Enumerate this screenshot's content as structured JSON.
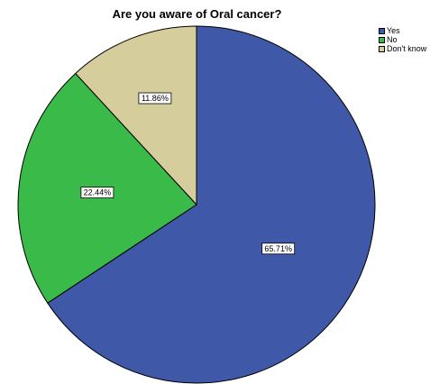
{
  "chart_data": {
    "type": "pie",
    "title": "Are you aware of Oral cancer?",
    "legend_position": "top-right",
    "slices": [
      {
        "label": "Yes",
        "value": 65.71,
        "value_label": "65.71%",
        "color": "#3f58a8"
      },
      {
        "label": "No",
        "value": 22.44,
        "value_label": "22.44%",
        "color": "#3aba48"
      },
      {
        "label": "Don't know",
        "value": 11.86,
        "value_label": "11.86%",
        "color": "#d5ce9c"
      }
    ],
    "start": "12 o'clock",
    "direction": "clockwise"
  }
}
